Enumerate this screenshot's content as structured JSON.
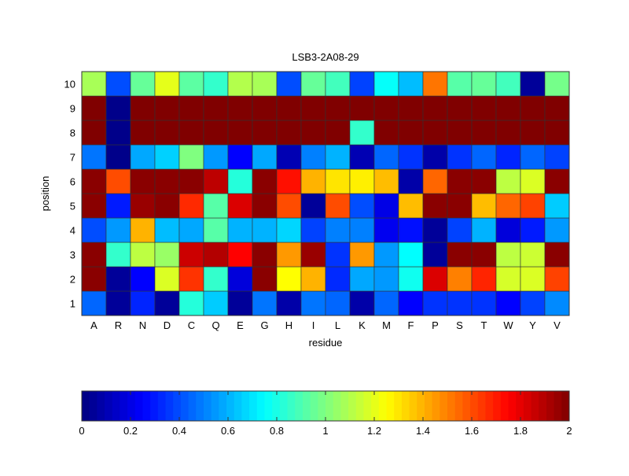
{
  "chart_data": {
    "type": "heatmap",
    "title": "LSB3-2A08-29",
    "xlabel": "residue",
    "ylabel": "position",
    "x_categories": [
      "A",
      "R",
      "N",
      "D",
      "C",
      "Q",
      "E",
      "G",
      "H",
      "I",
      "L",
      "K",
      "M",
      "F",
      "P",
      "S",
      "T",
      "W",
      "Y",
      "V"
    ],
    "y_categories": [
      "1",
      "2",
      "3",
      "4",
      "5",
      "6",
      "7",
      "8",
      "9",
      "10"
    ],
    "values": [
      [
        0.45,
        0.05,
        0.32,
        0.05,
        0.82,
        0.65,
        0.05,
        0.48,
        0.08,
        0.48,
        0.45,
        0.08,
        0.45,
        0.25,
        0.35,
        0.35,
        0.35,
        0.25,
        0.38,
        0.52
      ],
      [
        1.98,
        0.05,
        0.25,
        1.18,
        1.65,
        0.85,
        0.18,
        1.98,
        1.25,
        1.4,
        0.33,
        0.58,
        0.55,
        0.78,
        1.82,
        1.5,
        1.68,
        1.17,
        1.18,
        1.62
      ],
      [
        1.98,
        0.85,
        1.12,
        1.05,
        1.85,
        1.9,
        1.75,
        1.98,
        1.45,
        1.95,
        0.35,
        1.45,
        0.55,
        0.75,
        0.05,
        1.98,
        1.98,
        1.12,
        1.15,
        1.98
      ],
      [
        0.4,
        0.55,
        1.4,
        0.62,
        0.58,
        0.92,
        0.6,
        0.6,
        0.67,
        0.38,
        0.5,
        0.5,
        0.22,
        0.28,
        0.05,
        0.38,
        0.6,
        0.18,
        0.3,
        0.55
      ],
      [
        1.98,
        0.3,
        1.95,
        1.98,
        1.67,
        0.92,
        1.82,
        1.98,
        1.6,
        0.05,
        1.6,
        0.4,
        0.2,
        1.38,
        1.98,
        1.98,
        1.38,
        1.55,
        1.62,
        0.65
      ],
      [
        1.98,
        1.6,
        1.98,
        1.98,
        1.98,
        1.88,
        0.82,
        1.98,
        1.72,
        1.4,
        1.3,
        1.28,
        1.38,
        0.08,
        1.55,
        1.98,
        1.98,
        1.12,
        1.18,
        1.98
      ],
      [
        0.48,
        0.02,
        0.58,
        0.66,
        1.0,
        0.55,
        0.25,
        0.58,
        0.1,
        0.5,
        0.6,
        0.1,
        0.45,
        0.35,
        0.08,
        0.35,
        0.45,
        0.32,
        0.45,
        0.38
      ],
      [
        2,
        0.02,
        2,
        2,
        2,
        2,
        2,
        2,
        2,
        2,
        2,
        0.85,
        2,
        2,
        2,
        2,
        2,
        2,
        2,
        2
      ],
      [
        2,
        0.02,
        2,
        2,
        2,
        2,
        2,
        2,
        2,
        2,
        2,
        2,
        2,
        2,
        2,
        2,
        2,
        2,
        2,
        2
      ],
      [
        1.08,
        0.4,
        0.95,
        1.2,
        0.93,
        0.85,
        1.1,
        1.08,
        0.4,
        0.95,
        0.88,
        0.38,
        0.76,
        0.62,
        1.52,
        0.92,
        0.95,
        0.88,
        0.05,
        0.98
      ]
    ],
    "colormap": "jet",
    "clim": [
      0,
      2
    ],
    "colorbar": {
      "placement": "bottom",
      "ticks": [
        "0",
        "0.2",
        "0.4",
        "0.6",
        "0.8",
        "1",
        "1.2",
        "1.4",
        "1.6",
        "1.8",
        "2"
      ]
    }
  }
}
